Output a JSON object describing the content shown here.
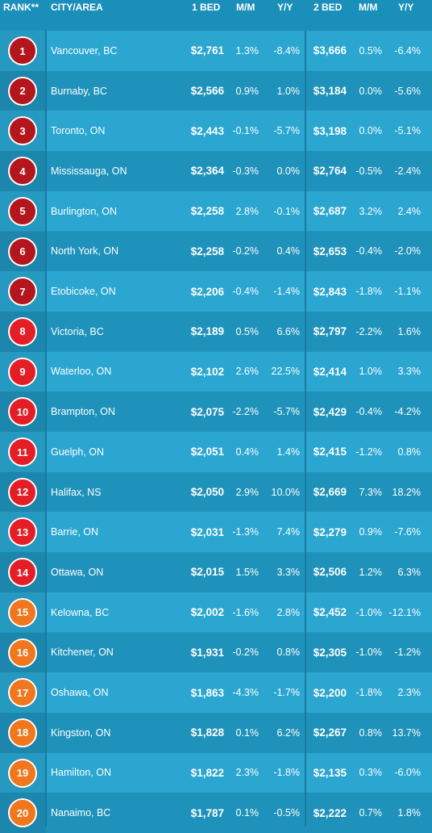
{
  "chart_data": {
    "type": "table",
    "columns": [
      "RANK**",
      "CITY/AREA",
      "1 BED",
      "M/M",
      "Y/Y",
      "2 BED",
      "M/M",
      "Y/Y"
    ],
    "rows": [
      {
        "rank": "1",
        "city": "Vancouver, BC",
        "bed1": "$2,761",
        "mm1": "1.3%",
        "yy1": "-8.4%",
        "bed2": "$3,666",
        "mm2": "0.5%",
        "yy2": "-6.4%",
        "color": "#b3161c"
      },
      {
        "rank": "2",
        "city": "Burnaby, BC",
        "bed1": "$2,566",
        "mm1": "0.9%",
        "yy1": "1.0%",
        "bed2": "$3,184",
        "mm2": "0.0%",
        "yy2": "-5.6%",
        "color": "#b3161c"
      },
      {
        "rank": "3",
        "city": "Toronto, ON",
        "bed1": "$2,443",
        "mm1": "-0.1%",
        "yy1": "-5.7%",
        "bed2": "$3,198",
        "mm2": "0.0%",
        "yy2": "-5.1%",
        "color": "#b3161c"
      },
      {
        "rank": "4",
        "city": "Mississauga, ON",
        "bed1": "$2,364",
        "mm1": "-0.3%",
        "yy1": "0.0%",
        "bed2": "$2,764",
        "mm2": "-0.5%",
        "yy2": "-2.4%",
        "color": "#b3161c"
      },
      {
        "rank": "5",
        "city": "Burlington, ON",
        "bed1": "$2,258",
        "mm1": "2.8%",
        "yy1": "-0.1%",
        "bed2": "$2,687",
        "mm2": "3.2%",
        "yy2": "2.4%",
        "color": "#b3161c"
      },
      {
        "rank": "6",
        "city": "North York, ON",
        "bed1": "$2,258",
        "mm1": "-0.2%",
        "yy1": "0.4%",
        "bed2": "$2,653",
        "mm2": "-0.4%",
        "yy2": "-2.0%",
        "color": "#b3161c"
      },
      {
        "rank": "7",
        "city": "Etobicoke, ON",
        "bed1": "$2,206",
        "mm1": "-0.4%",
        "yy1": "-1.4%",
        "bed2": "$2,843",
        "mm2": "-1.8%",
        "yy2": "-1.1%",
        "color": "#b3161c"
      },
      {
        "rank": "8",
        "city": "Victoria, BC",
        "bed1": "$2,189",
        "mm1": "0.5%",
        "yy1": "6.6%",
        "bed2": "$2,797",
        "mm2": "-2.2%",
        "yy2": "1.6%",
        "color": "#e41e26"
      },
      {
        "rank": "9",
        "city": "Waterloo, ON",
        "bed1": "$2,102",
        "mm1": "2.6%",
        "yy1": "22.5%",
        "bed2": "$2,414",
        "mm2": "1.0%",
        "yy2": "3.3%",
        "color": "#e41e26"
      },
      {
        "rank": "10",
        "city": "Brampton, ON",
        "bed1": "$2,075",
        "mm1": "-2.2%",
        "yy1": "-5.7%",
        "bed2": "$2,429",
        "mm2": "-0.4%",
        "yy2": "-4.2%",
        "color": "#e41e26"
      },
      {
        "rank": "11",
        "city": "Guelph, ON",
        "bed1": "$2,051",
        "mm1": "0.4%",
        "yy1": "1.4%",
        "bed2": "$2,415",
        "mm2": "-1.2%",
        "yy2": "0.8%",
        "color": "#e41e26"
      },
      {
        "rank": "12",
        "city": "Halifax, NS",
        "bed1": "$2,050",
        "mm1": "2.9%",
        "yy1": "10.0%",
        "bed2": "$2,669",
        "mm2": "7.3%",
        "yy2": "18.2%",
        "color": "#e41e26"
      },
      {
        "rank": "13",
        "city": "Barrie, ON",
        "bed1": "$2,031",
        "mm1": "-1.3%",
        "yy1": "7.4%",
        "bed2": "$2,279",
        "mm2": "0.9%",
        "yy2": "-7.6%",
        "color": "#e41e26"
      },
      {
        "rank": "14",
        "city": "Ottawa, ON",
        "bed1": "$2,015",
        "mm1": "1.5%",
        "yy1": "3.3%",
        "bed2": "$2,506",
        "mm2": "1.2%",
        "yy2": "6.3%",
        "color": "#e41e26"
      },
      {
        "rank": "15",
        "city": "Kelowna, BC",
        "bed1": "$2,002",
        "mm1": "-1.6%",
        "yy1": "2.8%",
        "bed2": "$2,452",
        "mm2": "-1.0%",
        "yy2": "-12.1%",
        "color": "#f0771e"
      },
      {
        "rank": "16",
        "city": "Kitchener, ON",
        "bed1": "$1,931",
        "mm1": "-0.2%",
        "yy1": "0.8%",
        "bed2": "$2,305",
        "mm2": "-1.0%",
        "yy2": "-1.2%",
        "color": "#f0771e"
      },
      {
        "rank": "17",
        "city": "Oshawa, ON",
        "bed1": "$1,863",
        "mm1": "-4.3%",
        "yy1": "-1.7%",
        "bed2": "$2,200",
        "mm2": "-1.8%",
        "yy2": "2.3%",
        "color": "#f0771e"
      },
      {
        "rank": "18",
        "city": "Kingston, ON",
        "bed1": "$1,828",
        "mm1": "0.1%",
        "yy1": "6.2%",
        "bed2": "$2,267",
        "mm2": "0.8%",
        "yy2": "13.7%",
        "color": "#f0771e"
      },
      {
        "rank": "19",
        "city": "Hamilton, ON",
        "bed1": "$1,822",
        "mm1": "2.3%",
        "yy1": "-1.8%",
        "bed2": "$2,135",
        "mm2": "0.3%",
        "yy2": "-6.0%",
        "color": "#f0771e"
      },
      {
        "rank": "20",
        "city": "Nanaimo, BC",
        "bed1": "$1,787",
        "mm1": "0.1%",
        "yy1": "-0.5%",
        "bed2": "$2,222",
        "mm2": "0.7%",
        "yy2": "1.8%",
        "color": "#f0771e"
      }
    ]
  }
}
